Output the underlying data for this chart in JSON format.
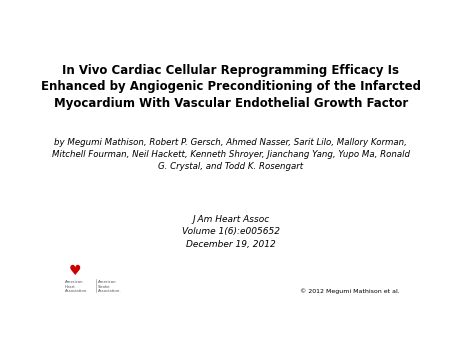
{
  "title_line1": "In Vivo Cardiac Cellular Reprogramming Efficacy Is",
  "title_line2": "Enhanced by Angiogenic Preconditioning of the Infarcted",
  "title_line3": "Myocardium With Vascular Endothelial Growth Factor",
  "authors_line1": "by Megumi Mathison, Robert P. Gersch, Ahmed Nasser, Sarit Lilo, Mallory Korman,",
  "authors_line2": "Mitchell Fourman, Neil Hackett, Kenneth Shroyer, Jianchang Yang, Yupo Ma, Ronald",
  "authors_line3": "G. Crystal, and Todd K. Rosengart",
  "journal_line1": "J Am Heart Assoc",
  "journal_line2": "Volume 1(6):e005652",
  "journal_line3": "December 19, 2012",
  "copyright": "© 2012 Megumi Mathison et al.",
  "bg_color": "#ffffff",
  "title_fontsize": 8.5,
  "author_fontsize": 6.2,
  "journal_fontsize": 6.5,
  "copyright_fontsize": 4.5,
  "heart_fontsize": 10,
  "logo_text_fontsize": 2.8
}
